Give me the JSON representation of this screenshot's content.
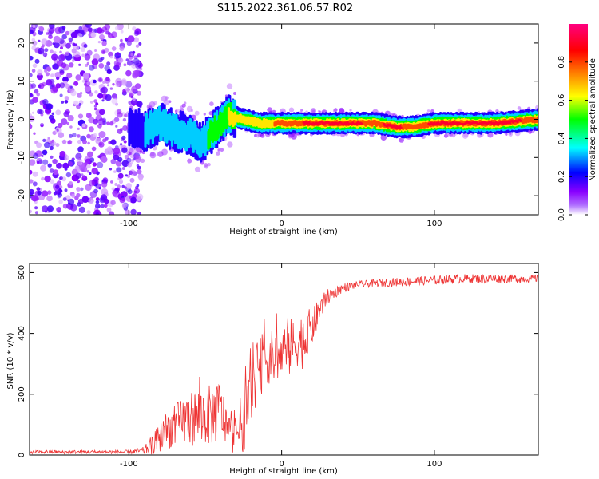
{
  "title": "S115.2022.361.06.57.R02",
  "chart_data": [
    {
      "type": "heatmap",
      "xlabel": "Height of straight line (km)",
      "ylabel": "Frequency (Hz)",
      "xlim": [
        -165,
        168
      ],
      "ylim": [
        -25,
        25
      ],
      "x_ticks": [
        -100,
        0,
        100
      ],
      "y_ticks": [
        -20,
        -10,
        0,
        10,
        20
      ],
      "x_tick_labels": [
        "-100",
        "0",
        "100"
      ],
      "y_tick_labels": [
        "-20",
        "-10",
        "0",
        "10",
        "20"
      ],
      "colorbar": {
        "label": "Normalized spectral amplitude",
        "range": [
          0,
          1
        ],
        "ticks": [
          0.0,
          0.2,
          0.4,
          0.6,
          0.8
        ],
        "tick_labels": [
          "0.0",
          "0.2",
          "0.4",
          "0.6",
          "0.8"
        ],
        "colors": [
          "#ffffff",
          "#8a00ff",
          "#0000ff",
          "#00ffff",
          "#00ff00",
          "#ffff00",
          "#ff8000",
          "#ff0000",
          "#ff0080"
        ]
      },
      "ridge": {
        "x": [
          -100,
          -90,
          -80,
          -70,
          -60,
          -52,
          -45,
          -35,
          -25,
          -15,
          -5,
          0,
          20,
          40,
          60,
          75,
          85,
          100,
          120,
          140,
          168
        ],
        "y": [
          -2,
          -3,
          -1,
          -3,
          -4,
          -6,
          -3,
          1,
          0,
          -1,
          -1,
          -1,
          -1,
          -1,
          -1,
          -2,
          -2,
          -1,
          -1,
          -1,
          0
        ],
        "amplitude": [
          0.2,
          0.3,
          0.4,
          0.35,
          0.35,
          0.4,
          0.5,
          0.6,
          0.65,
          0.7,
          0.75,
          0.8,
          0.9,
          0.9,
          0.85,
          0.9,
          0.8,
          0.9,
          0.95,
          0.9,
          0.85
        ]
      },
      "noise_region_x": [
        -165,
        -100
      ]
    },
    {
      "type": "line",
      "xlabel": "Height of straight line (km)",
      "ylabel": "SNR (10 * v/v)",
      "xlim": [
        -165,
        168
      ],
      "ylim": [
        0,
        630
      ],
      "x_ticks": [
        -100,
        0,
        100
      ],
      "y_ticks": [
        0,
        200,
        400,
        600
      ],
      "x_tick_labels": [
        "-100",
        "0",
        "100"
      ],
      "y_tick_labels": [
        "0",
        "200",
        "400",
        "600"
      ],
      "color": "#ee3333",
      "envelope": {
        "x": [
          -165,
          -100,
          -90,
          -83,
          -75,
          -65,
          -55,
          -45,
          -40,
          -35,
          -30,
          -25,
          -20,
          -15,
          -10,
          -5,
          0,
          5,
          10,
          15,
          20,
          25,
          30,
          40,
          50,
          60,
          80,
          100,
          120,
          140,
          168
        ],
        "y": [
          10,
          10,
          15,
          40,
          80,
          110,
          130,
          130,
          150,
          80,
          60,
          120,
          220,
          280,
          320,
          320,
          330,
          350,
          370,
          380,
          420,
          480,
          520,
          550,
          560,
          565,
          570,
          575,
          580,
          580,
          580
        ],
        "jitter": [
          6,
          6,
          12,
          40,
          60,
          80,
          100,
          100,
          100,
          60,
          60,
          120,
          100,
          100,
          90,
          90,
          80,
          100,
          80,
          100,
          60,
          40,
          25,
          15,
          12,
          12,
          15,
          15,
          15,
          15,
          12
        ]
      }
    }
  ]
}
